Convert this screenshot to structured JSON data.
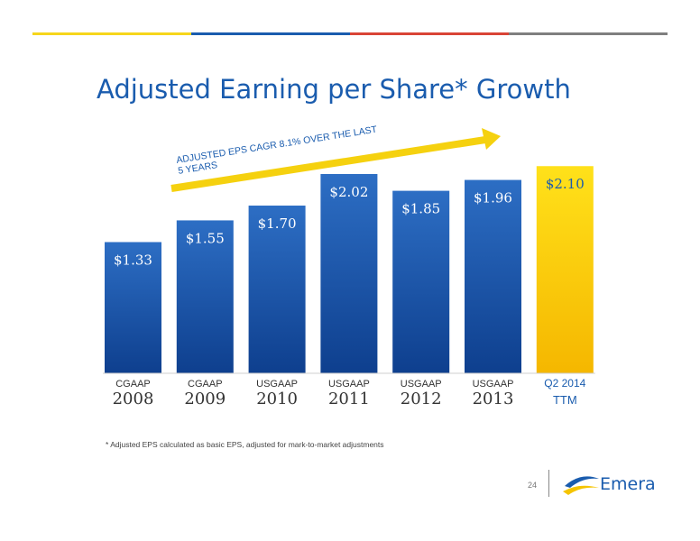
{
  "colors": {
    "topbar": [
      "#f6d61c",
      "#1a5cae",
      "#d94436",
      "#7f7f7f"
    ],
    "accent": "#1a5cae",
    "bar_blue_top": "#2d6ec4",
    "bar_blue_bottom": "#0e3f8e",
    "bar_yellow_top": "#ffe11a",
    "bar_yellow_bottom": "#f5b700",
    "arrow": "#f5d10f"
  },
  "slide": {
    "title": "Adjusted Earning per Share* Growth",
    "footnote": "* Adjusted EPS calculated as basic EPS, adjusted for mark-to-market adjustments",
    "page_number": "24",
    "logo_text": "Emera"
  },
  "chart_data": {
    "type": "bar",
    "categories": [
      "2008",
      "2009",
      "2010",
      "2011",
      "2012",
      "2013",
      "TTM"
    ],
    "category_prefix": [
      "CGAAP",
      "CGAAP",
      "USGAAP",
      "USGAAP",
      "USGAAP",
      "USGAAP",
      "Q2 2014"
    ],
    "values": [
      1.33,
      1.55,
      1.7,
      2.02,
      1.85,
      1.96,
      2.1
    ],
    "value_labels": [
      "$1.33",
      "$1.55",
      "$1.70",
      "$2.02",
      "$1.85",
      "$1.96",
      "$2.10"
    ],
    "highlight_index": 6,
    "ylim": [
      0,
      2.02
    ],
    "annotation": {
      "line1": "ADJUSTED EPS CAGR  8.1% OVER THE LAST",
      "line2": "5 YEARS"
    },
    "grid": false,
    "title": "",
    "xlabel": "",
    "ylabel": ""
  }
}
